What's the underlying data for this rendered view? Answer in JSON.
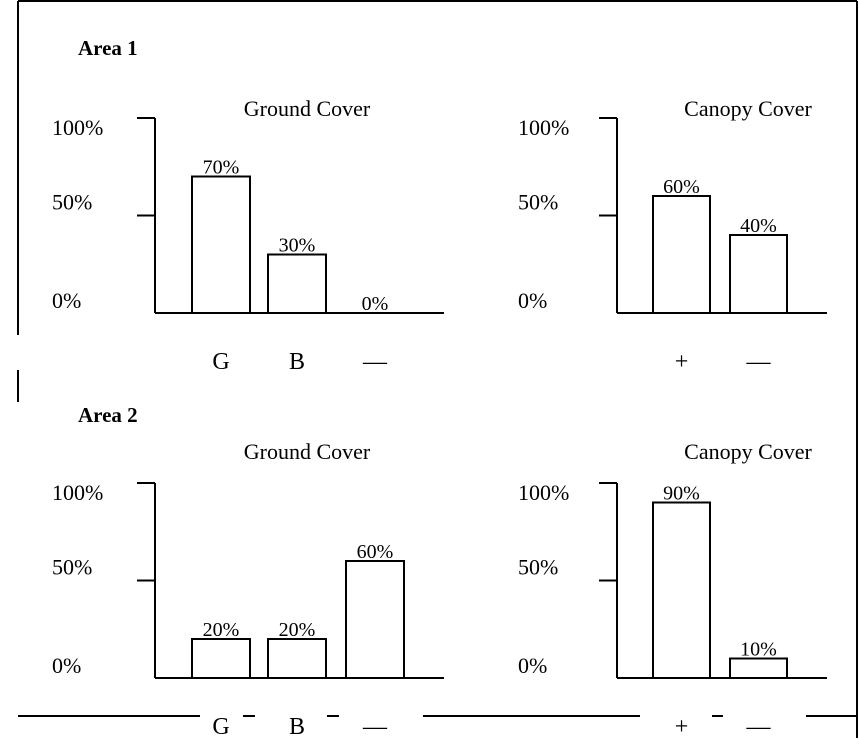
{
  "areas": [
    {
      "title": "Area 1"
    },
    {
      "title": "Area 2"
    }
  ],
  "chart_data": [
    {
      "type": "bar",
      "area": "Area 1",
      "title": "Ground Cover",
      "categories": [
        "G",
        "B",
        "—"
      ],
      "values": [
        70,
        30,
        0
      ],
      "data_labels": [
        "70%",
        "30%",
        "0%"
      ],
      "yticks": [
        "100%",
        "50%",
        "0%"
      ],
      "ylim": [
        0,
        100
      ],
      "grid": false
    },
    {
      "type": "bar",
      "area": "Area 1",
      "title": "Canopy Cover",
      "categories": [
        "+",
        "—"
      ],
      "values": [
        60,
        40
      ],
      "data_labels": [
        "60%",
        "40%"
      ],
      "yticks": [
        "100%",
        "50%",
        "0%"
      ],
      "ylim": [
        0,
        100
      ],
      "grid": false
    },
    {
      "type": "bar",
      "area": "Area 2",
      "title": "Ground Cover",
      "categories": [
        "G",
        "B",
        "—"
      ],
      "values": [
        20,
        20,
        60
      ],
      "data_labels": [
        "20%",
        "20%",
        "60%"
      ],
      "yticks": [
        "100%",
        "50%",
        "0%"
      ],
      "ylim": [
        0,
        100
      ],
      "grid": false
    },
    {
      "type": "bar",
      "area": "Area 2",
      "title": "Canopy Cover",
      "categories": [
        "+",
        "—"
      ],
      "values": [
        90,
        10
      ],
      "data_labels": [
        "90%",
        "10%"
      ],
      "yticks": [
        "100%",
        "50%",
        "0%"
      ],
      "ylim": [
        0,
        100
      ],
      "grid": false
    }
  ]
}
